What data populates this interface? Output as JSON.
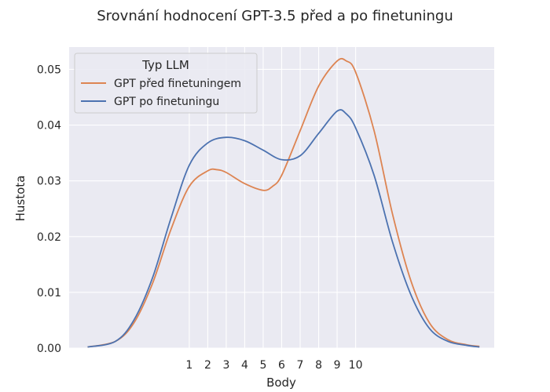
{
  "chart_data": {
    "type": "line",
    "subtype": "kde-density",
    "title": "Srovnání hodnocení GPT-3.5 před a po finetuningu",
    "xlabel": "Body",
    "ylabel": "Hustota",
    "xlim": [
      -5.5,
      17.5
    ],
    "ylim": [
      0,
      0.054
    ],
    "x_ticks": [
      1,
      2,
      3,
      4,
      5,
      6,
      7,
      8,
      9,
      10
    ],
    "y_ticks": [
      0.0,
      0.01,
      0.02,
      0.03,
      0.04,
      0.05
    ],
    "y_tick_labels": [
      "0.00",
      "0.01",
      "0.02",
      "0.03",
      "0.04",
      "0.05"
    ],
    "grid": true,
    "legend": {
      "title": "Typ LLM",
      "position": "top-left"
    },
    "series": [
      {
        "name": "GPT před finetuningem",
        "color": "#dd8452",
        "x": [
          -4.5,
          -3,
          -2,
          -1,
          0,
          1,
          2,
          2.5,
          3,
          4,
          5,
          5.5,
          6,
          7,
          8,
          9,
          9.5,
          10,
          11,
          12,
          13,
          14,
          15,
          16,
          16.7
        ],
        "y": [
          0.0002,
          0.0012,
          0.0045,
          0.0115,
          0.0212,
          0.029,
          0.0318,
          0.032,
          0.0315,
          0.0295,
          0.0283,
          0.029,
          0.031,
          0.039,
          0.047,
          0.0515,
          0.0515,
          0.0495,
          0.039,
          0.024,
          0.012,
          0.0045,
          0.0015,
          0.0006,
          0.0003
        ]
      },
      {
        "name": "GPT po finetuningu",
        "color": "#4c72b0",
        "x": [
          -4.5,
          -3,
          -2,
          -1,
          0,
          1,
          2,
          3,
          4,
          5,
          6,
          7,
          8,
          9,
          9.5,
          10,
          11,
          12,
          13,
          14,
          15,
          16,
          16.7
        ],
        "y": [
          0.0002,
          0.0012,
          0.005,
          0.0125,
          0.0232,
          0.0328,
          0.0368,
          0.0378,
          0.0372,
          0.0355,
          0.0338,
          0.0345,
          0.0385,
          0.0425,
          0.042,
          0.0395,
          0.031,
          0.019,
          0.0095,
          0.0035,
          0.0012,
          0.0005,
          0.0002
        ]
      }
    ]
  }
}
